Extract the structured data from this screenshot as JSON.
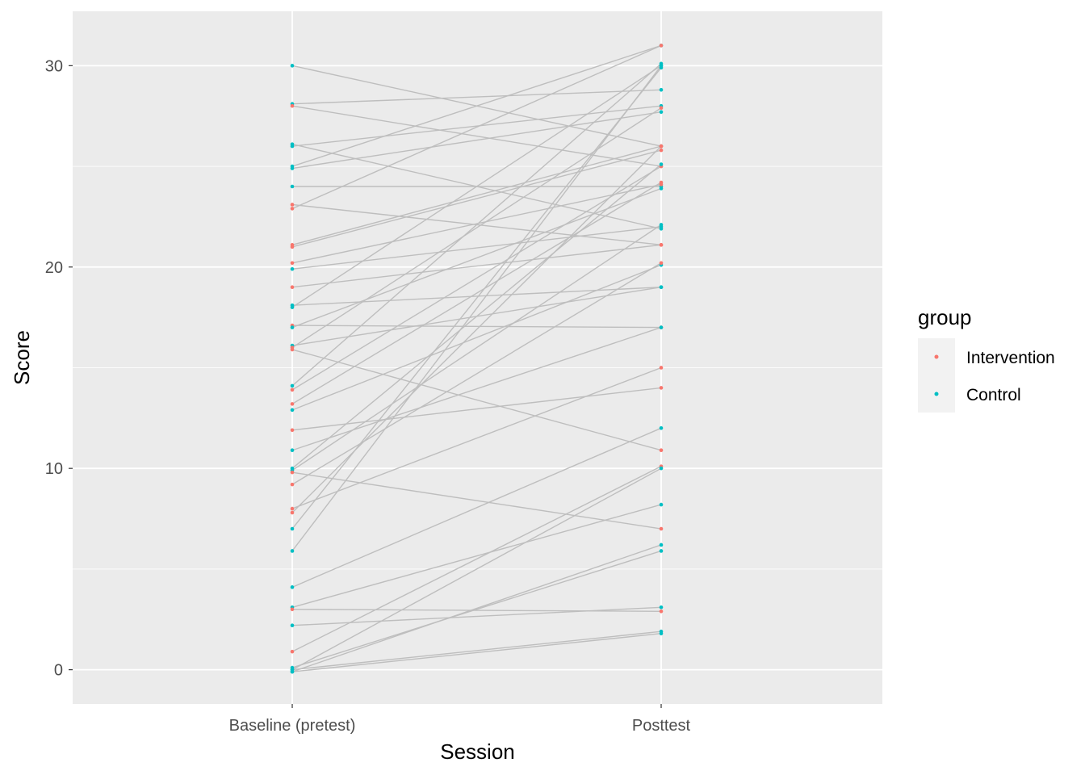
{
  "chart_data": {
    "type": "line",
    "title": "",
    "xlabel": "Session",
    "ylabel": "Score",
    "categories": [
      "Baseline (pretest)",
      "Posttest"
    ],
    "ylim": [
      -1.7,
      32.7
    ],
    "yticks": [
      0,
      10,
      20,
      30
    ],
    "grid": true,
    "legend": {
      "title": "group",
      "position": "right",
      "entries": [
        {
          "name": "Intervention",
          "color": "#F8766D"
        },
        {
          "name": "Control",
          "color": "#00BFC4"
        }
      ]
    },
    "colors": {
      "panel": "#EBEBEB",
      "grid_major": "#FFFFFF",
      "line": "#BEBEBE",
      "Intervention": "#F8766D",
      "Control": "#00BFC4"
    },
    "series": [
      {
        "group": "Control",
        "values": [
          30,
          26
        ]
      },
      {
        "group": "Control",
        "values": [
          28.1,
          28.8
        ]
      },
      {
        "group": "Intervention",
        "values": [
          28,
          25
        ]
      },
      {
        "group": "Control",
        "values": [
          26.1,
          21.9
        ]
      },
      {
        "group": "Control",
        "values": [
          26,
          28
        ]
      },
      {
        "group": "Control",
        "values": [
          25,
          31
        ]
      },
      {
        "group": "Control",
        "values": [
          24.9,
          27.7
        ]
      },
      {
        "group": "Control",
        "values": [
          24,
          24
        ]
      },
      {
        "group": "Intervention",
        "values": [
          23.1,
          21.1
        ]
      },
      {
        "group": "Intervention",
        "values": [
          22.9,
          31
        ]
      },
      {
        "group": "Intervention",
        "values": [
          21.1,
          26
        ]
      },
      {
        "group": "Intervention",
        "values": [
          21,
          25.8
        ]
      },
      {
        "group": "Intervention",
        "values": [
          20.2,
          24.1
        ]
      },
      {
        "group": "Control",
        "values": [
          19.9,
          22
        ]
      },
      {
        "group": "Intervention",
        "values": [
          19,
          21.1
        ]
      },
      {
        "group": "Control",
        "values": [
          18.1,
          19
        ]
      },
      {
        "group": "Control",
        "values": [
          18,
          30
        ]
      },
      {
        "group": "Intervention",
        "values": [
          17.1,
          17
        ]
      },
      {
        "group": "Control",
        "values": [
          17,
          23.9
        ]
      },
      {
        "group": "Control",
        "values": [
          16.1,
          19
        ]
      },
      {
        "group": "Intervention",
        "values": [
          15.9,
          10.9
        ]
      },
      {
        "group": "Intervention",
        "values": [
          16,
          27.9
        ]
      },
      {
        "group": "Control",
        "values": [
          14.1,
          30.1
        ]
      },
      {
        "group": "Intervention",
        "values": [
          13.9,
          25
        ]
      },
      {
        "group": "Intervention",
        "values": [
          13.2,
          24.2
        ]
      },
      {
        "group": "Control",
        "values": [
          12.9,
          20.1
        ]
      },
      {
        "group": "Intervention",
        "values": [
          11.9,
          14
        ]
      },
      {
        "group": "Control",
        "values": [
          10.9,
          17
        ]
      },
      {
        "group": "Control",
        "values": [
          10,
          25.1
        ]
      },
      {
        "group": "Control",
        "values": [
          9.9,
          22.1
        ]
      },
      {
        "group": "Intervention",
        "values": [
          9.8,
          7
        ]
      },
      {
        "group": "Intervention",
        "values": [
          9.2,
          20.2
        ]
      },
      {
        "group": "Intervention",
        "values": [
          8,
          15
        ]
      },
      {
        "group": "Intervention",
        "values": [
          7.8,
          26
        ]
      },
      {
        "group": "Control",
        "values": [
          7,
          29.9
        ]
      },
      {
        "group": "Control",
        "values": [
          5.9,
          30
        ]
      },
      {
        "group": "Control",
        "values": [
          4.1,
          12
        ]
      },
      {
        "group": "Control",
        "values": [
          3.1,
          8.2
        ]
      },
      {
        "group": "Intervention",
        "values": [
          3,
          2.9
        ]
      },
      {
        "group": "Control",
        "values": [
          2.2,
          3.1
        ]
      },
      {
        "group": "Intervention",
        "values": [
          0.9,
          10.1
        ]
      },
      {
        "group": "Control",
        "values": [
          0.1,
          5.9
        ]
      },
      {
        "group": "Control",
        "values": [
          0,
          10
        ]
      },
      {
        "group": "Control",
        "values": [
          -0.1,
          6.2
        ]
      },
      {
        "group": "Control",
        "values": [
          -0.1,
          1.8
        ]
      },
      {
        "group": "Control",
        "values": [
          0,
          1.9
        ]
      }
    ]
  }
}
